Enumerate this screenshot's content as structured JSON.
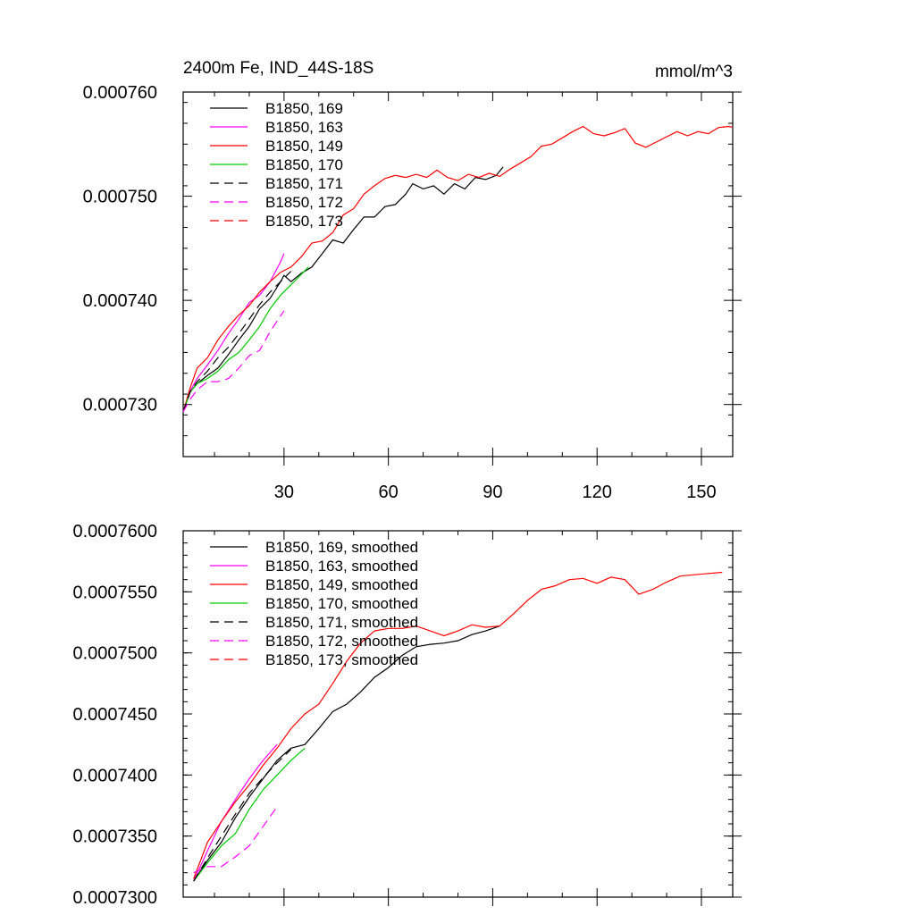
{
  "chart_data": [
    {
      "type": "line",
      "title": "2400m Fe, IND_44S-18S",
      "units": "mmol/m^3",
      "xlim": [
        1,
        159
      ],
      "ylim": [
        0.000725,
        0.00076
      ],
      "xticks": [
        30,
        60,
        90,
        120,
        150
      ],
      "xtick_labels": [
        "30",
        "60",
        "90",
        "120",
        "150"
      ],
      "yticks": [
        0.00073,
        0.00074,
        0.00075,
        0.00076
      ],
      "ytick_labels": [
        "0.000730",
        "0.000740",
        "0.000750",
        "0.000760"
      ],
      "legend_position": "top-left",
      "series": [
        {
          "name": "B1850, 169",
          "color": "#000000",
          "dash": "solid",
          "x": [
            1,
            3,
            5,
            8,
            11,
            14,
            17,
            20,
            23,
            26,
            29,
            30,
            32,
            35,
            38,
            41,
            44,
            47,
            50,
            53,
            56,
            59,
            62,
            65,
            67,
            70,
            73,
            76,
            79,
            82,
            85,
            88,
            91,
            93
          ],
          "y": [
            0.0007293,
            0.0007312,
            0.000732,
            0.0007328,
            0.0007335,
            0.0007348,
            0.0007362,
            0.0007375,
            0.0007392,
            0.0007402,
            0.0007418,
            0.0007424,
            0.0007418,
            0.0007426,
            0.0007432,
            0.0007445,
            0.0007458,
            0.0007455,
            0.0007468,
            0.000748,
            0.000748,
            0.000749,
            0.0007492,
            0.0007502,
            0.0007512,
            0.0007507,
            0.000751,
            0.0007502,
            0.0007512,
            0.0007507,
            0.0007518,
            0.0007516,
            0.000752,
            0.0007528
          ]
        },
        {
          "name": "B1850, 163",
          "color": "#ff00ff",
          "dash": "solid",
          "x": [
            1,
            3,
            5,
            8,
            11,
            14,
            17,
            20,
            23,
            26,
            29,
            30
          ],
          "y": [
            0.0007293,
            0.0007313,
            0.0007325,
            0.0007338,
            0.0007352,
            0.0007368,
            0.0007382,
            0.0007398,
            0.0007405,
            0.0007418,
            0.0007437,
            0.0007445
          ]
        },
        {
          "name": "B1850, 149",
          "color": "#ff0000",
          "dash": "solid",
          "x": [
            1,
            3,
            5,
            8,
            11,
            14,
            17,
            20,
            23,
            26,
            29,
            32,
            35,
            38,
            41,
            44,
            47,
            50,
            53,
            56,
            59,
            62,
            65,
            68,
            71,
            74,
            77,
            80,
            83,
            86,
            89,
            92,
            95,
            98,
            101,
            104,
            107,
            110,
            113,
            116,
            119,
            122,
            125,
            128,
            131,
            134,
            137,
            140,
            143,
            146,
            149,
            152,
            155,
            158,
            159
          ],
          "y": [
            0.0007293,
            0.0007316,
            0.0007335,
            0.0007345,
            0.0007362,
            0.0007375,
            0.0007386,
            0.0007395,
            0.0007408,
            0.0007418,
            0.0007427,
            0.0007432,
            0.0007442,
            0.0007455,
            0.0007457,
            0.0007465,
            0.0007482,
            0.0007488,
            0.0007502,
            0.000751,
            0.0007517,
            0.000752,
            0.0007518,
            0.0007521,
            0.0007518,
            0.0007525,
            0.0007518,
            0.0007515,
            0.0007521,
            0.0007518,
            0.0007522,
            0.0007519,
            0.0007526,
            0.0007532,
            0.0007538,
            0.0007548,
            0.000755,
            0.0007556,
            0.0007562,
            0.0007567,
            0.000756,
            0.0007558,
            0.0007561,
            0.0007565,
            0.0007551,
            0.0007547,
            0.0007552,
            0.0007557,
            0.0007562,
            0.0007558,
            0.0007562,
            0.000756,
            0.0007566,
            0.0007567,
            0.0007566
          ]
        },
        {
          "name": "B1850, 170",
          "color": "#00cc00",
          "dash": "solid",
          "x": [
            1,
            3,
            5,
            8,
            11,
            14,
            17,
            20,
            23,
            26,
            29,
            32,
            35,
            37
          ],
          "y": [
            0.0007293,
            0.0007312,
            0.000732,
            0.0007325,
            0.0007332,
            0.0007343,
            0.000735,
            0.0007362,
            0.0007375,
            0.0007392,
            0.0007405,
            0.0007415,
            0.0007425,
            0.0007432
          ]
        },
        {
          "name": "B1850, 171",
          "color": "#000000",
          "dash": "long-dash",
          "x": [
            1,
            3,
            5,
            8,
            11,
            14,
            17,
            20,
            23,
            26,
            29,
            32
          ],
          "y": [
            0.0007293,
            0.0007312,
            0.0007322,
            0.0007332,
            0.0007345,
            0.0007355,
            0.0007368,
            0.0007382,
            0.0007396,
            0.0007408,
            0.0007418,
            0.0007428
          ]
        },
        {
          "name": "B1850, 172",
          "color": "#ff00ff",
          "dash": "long-dash",
          "x": [
            1,
            3,
            5,
            8,
            11,
            14,
            17,
            20,
            23,
            26,
            29,
            30
          ],
          "y": [
            0.0007293,
            0.0007305,
            0.0007314,
            0.0007322,
            0.0007322,
            0.0007325,
            0.0007335,
            0.0007347,
            0.0007352,
            0.000737,
            0.0007385,
            0.000739
          ]
        },
        {
          "name": "B1850, 173",
          "color": "#ff0000",
          "dash": "long-dash",
          "x": [],
          "y": []
        }
      ]
    },
    {
      "type": "line",
      "title": "",
      "xlim": [
        1,
        159
      ],
      "ylim": [
        0.00073,
        0.00076
      ],
      "xticks": [
        30,
        60,
        90,
        120,
        150
      ],
      "yticks": [
        0.00073,
        0.000735,
        0.00074,
        0.000745,
        0.00075,
        0.000755,
        0.00076
      ],
      "ytick_labels": [
        "0.0007300",
        "0.0007350",
        "0.0007400",
        "0.0007450",
        "0.0007500",
        "0.0007550",
        "0.0007600"
      ],
      "legend_position": "top-left",
      "series": [
        {
          "name": "B1850, 169, smoothed",
          "color": "#000000",
          "dash": "solid",
          "x": [
            4,
            8,
            12,
            16,
            20,
            24,
            28,
            32,
            36,
            40,
            44,
            48,
            52,
            56,
            60,
            64,
            68,
            72,
            76,
            80,
            84,
            88,
            92
          ],
          "y": [
            0.0007313,
            0.000733,
            0.0007345,
            0.0007365,
            0.0007382,
            0.0007397,
            0.0007412,
            0.0007422,
            0.0007425,
            0.0007438,
            0.0007452,
            0.0007458,
            0.0007468,
            0.000748,
            0.0007488,
            0.0007498,
            0.0007505,
            0.0007507,
            0.0007508,
            0.000751,
            0.0007515,
            0.0007518,
            0.0007522
          ]
        },
        {
          "name": "B1850, 163, smoothed",
          "color": "#ff00ff",
          "dash": "solid",
          "x": [
            4,
            8,
            12,
            16,
            20,
            24,
            28
          ],
          "y": [
            0.0007313,
            0.0007338,
            0.0007362,
            0.000738,
            0.0007397,
            0.0007412,
            0.0007425
          ]
        },
        {
          "name": "B1850, 149, smoothed",
          "color": "#ff0000",
          "dash": "solid",
          "x": [
            4,
            8,
            12,
            16,
            20,
            24,
            28,
            32,
            36,
            40,
            44,
            48,
            52,
            56,
            60,
            64,
            68,
            72,
            76,
            80,
            84,
            88,
            92,
            96,
            100,
            104,
            108,
            112,
            116,
            120,
            124,
            128,
            132,
            136,
            140,
            144,
            148,
            152,
            156
          ],
          "y": [
            0.0007315,
            0.0007345,
            0.0007362,
            0.0007378,
            0.0007392,
            0.0007408,
            0.0007422,
            0.0007438,
            0.000745,
            0.0007458,
            0.0007475,
            0.0007493,
            0.0007508,
            0.0007518,
            0.000752,
            0.000752,
            0.0007522,
            0.0007518,
            0.0007514,
            0.0007518,
            0.0007523,
            0.0007521,
            0.0007522,
            0.0007532,
            0.0007543,
            0.0007552,
            0.0007555,
            0.000756,
            0.0007561,
            0.0007557,
            0.0007562,
            0.000756,
            0.0007548,
            0.0007552,
            0.0007558,
            0.0007563,
            0.0007564,
            0.0007565,
            0.0007566
          ]
        },
        {
          "name": "B1850, 170, smoothed",
          "color": "#00cc00",
          "dash": "solid",
          "x": [
            4,
            8,
            12,
            16,
            20,
            24,
            28,
            32,
            36
          ],
          "y": [
            0.0007313,
            0.0007328,
            0.0007342,
            0.0007352,
            0.0007372,
            0.0007388,
            0.00074,
            0.0007412,
            0.0007422
          ]
        },
        {
          "name": "B1850, 171, smoothed",
          "color": "#000000",
          "dash": "long-dash",
          "x": [
            4,
            8,
            12,
            16,
            20,
            24,
            28,
            32
          ],
          "y": [
            0.0007313,
            0.0007332,
            0.000735,
            0.0007368,
            0.0007385,
            0.0007398,
            0.000741,
            0.0007421
          ]
        },
        {
          "name": "B1850, 172, smoothed",
          "color": "#ff00ff",
          "dash": "long-dash",
          "x": [
            4,
            8,
            12,
            16,
            20,
            24,
            28
          ],
          "y": [
            0.000732,
            0.0007325,
            0.0007325,
            0.0007333,
            0.0007342,
            0.0007358,
            0.0007374
          ]
        },
        {
          "name": "B1850, 173, smoothed",
          "color": "#ff0000",
          "dash": "long-dash",
          "x": [],
          "y": []
        }
      ]
    }
  ]
}
